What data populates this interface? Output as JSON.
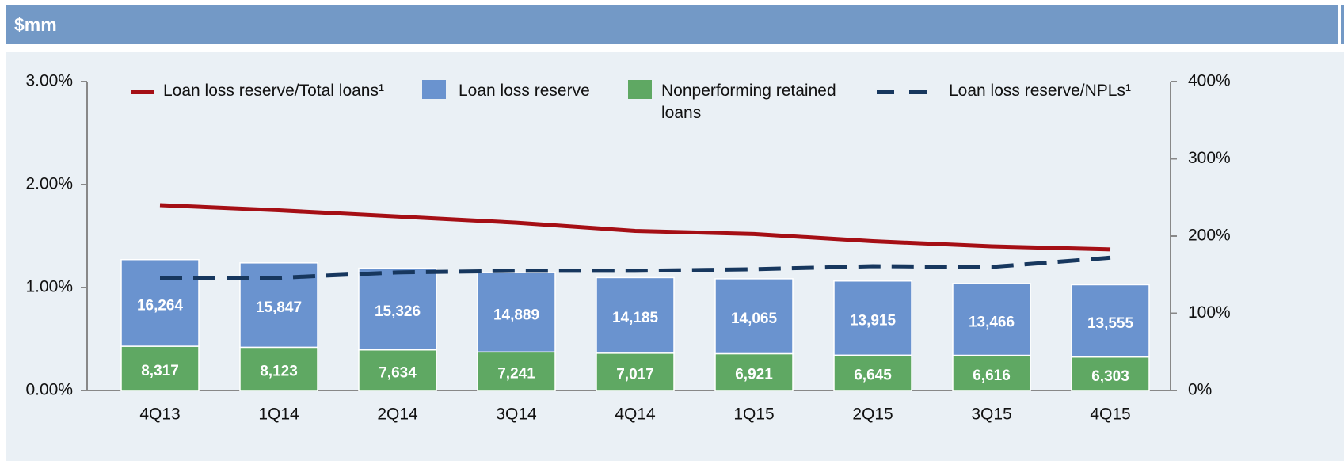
{
  "header": "$mm",
  "chart_data": {
    "type": "bar",
    "categories": [
      "4Q13",
      "1Q14",
      "2Q14",
      "3Q14",
      "4Q14",
      "1Q15",
      "2Q15",
      "3Q15",
      "4Q15"
    ],
    "series": [
      {
        "name": "Loan loss reserve/Total loans¹",
        "type": "line",
        "color": "#a50f15",
        "axis": "y",
        "values": [
          1.8,
          1.75,
          1.69,
          1.63,
          1.55,
          1.52,
          1.45,
          1.4,
          1.37
        ]
      },
      {
        "name": "Loan loss reserve",
        "type": "bar",
        "color": "#6a93cf",
        "axis": "y3",
        "values": [
          16264,
          15847,
          15326,
          14889,
          14185,
          14065,
          13915,
          13466,
          13555
        ],
        "value_labels": [
          "16,264",
          "15,847",
          "15,326",
          "14,889",
          "14,185",
          "14,065",
          "13,915",
          "13,466",
          "13,555"
        ]
      },
      {
        "name": "Nonperforming retained loans",
        "type": "bar",
        "color": "#5fa863",
        "axis": "y3",
        "values": [
          8317,
          8123,
          7634,
          7241,
          7017,
          6921,
          6645,
          6616,
          6303
        ],
        "value_labels": [
          "8,317",
          "8,123",
          "7,634",
          "7,241",
          "7,017",
          "6,921",
          "6,645",
          "6,616",
          "6,303"
        ]
      },
      {
        "name": "Loan loss reserve/NPLs¹",
        "type": "line",
        "dashed": true,
        "color": "#17375e",
        "axis": "y2",
        "values": [
          146,
          146,
          153,
          155,
          155,
          157,
          161,
          160,
          172
        ]
      }
    ],
    "ylim": [
      0,
      3
    ],
    "yticks": [
      {
        "value": 0,
        "label": "0.00%"
      },
      {
        "value": 1,
        "label": "1.00%"
      },
      {
        "value": 2,
        "label": "2.00%"
      },
      {
        "value": 3,
        "label": "3.00%"
      }
    ],
    "y2lim": [
      0,
      400
    ],
    "y2ticks": [
      {
        "value": 0,
        "label": "0%"
      },
      {
        "value": 100,
        "label": "100%"
      },
      {
        "value": 200,
        "label": "200%"
      },
      {
        "value": 300,
        "label": "300%"
      },
      {
        "value": 400,
        "label": "400%"
      }
    ],
    "y3lim": [
      0,
      58000
    ]
  }
}
